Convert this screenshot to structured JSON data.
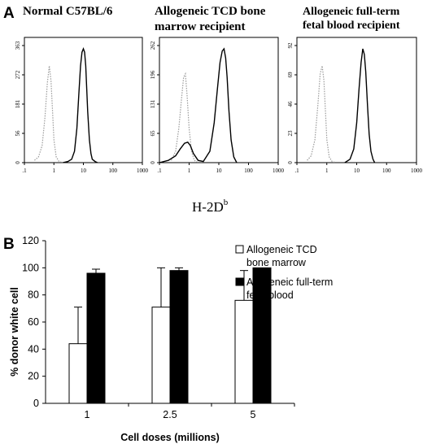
{
  "chart_data": [
    {
      "type": "line",
      "panel_label": "A",
      "title": "Normal C57BL/6",
      "xscale": "log",
      "xticks": [
        ".1",
        "1",
        "10",
        "100",
        "1000"
      ],
      "yticks": [
        "0",
        "56",
        "181",
        "272",
        "363"
      ],
      "series": [
        {
          "style": "gray-dotted",
          "x": [
            0.22,
            0.3,
            0.4,
            0.5,
            0.6,
            0.7,
            0.8,
            0.9,
            1.0,
            1.2,
            1.5,
            2.0
          ],
          "y": [
            0.02,
            0.05,
            0.15,
            0.4,
            0.7,
            0.85,
            0.72,
            0.45,
            0.2,
            0.05,
            0.01,
            0
          ]
        },
        {
          "style": "black-solid",
          "x": [
            2,
            3,
            4,
            5,
            6,
            7,
            8,
            9,
            10,
            11,
            12,
            13,
            14,
            16,
            18,
            20,
            25,
            30
          ],
          "y": [
            0,
            0.01,
            0.03,
            0.1,
            0.3,
            0.6,
            0.85,
            0.97,
            1.0,
            0.97,
            0.85,
            0.65,
            0.45,
            0.2,
            0.08,
            0.03,
            0.01,
            0
          ]
        }
      ]
    },
    {
      "type": "line",
      "title_lines": [
        "Allogeneic TCD bone",
        "marrow recipient"
      ],
      "xscale": "log",
      "xticks": [
        ".1",
        "1",
        "10",
        "100",
        "1000"
      ],
      "yticks": [
        "0",
        "65",
        "131",
        "196",
        "262"
      ],
      "series": [
        {
          "style": "gray-dotted",
          "x": [
            0.25,
            0.35,
            0.45,
            0.55,
            0.65,
            0.75,
            0.85,
            1.0,
            1.2,
            1.5,
            2.0
          ],
          "y": [
            0.02,
            0.1,
            0.3,
            0.55,
            0.75,
            0.78,
            0.6,
            0.3,
            0.1,
            0.02,
            0
          ]
        },
        {
          "style": "black-solid",
          "x": [
            0.1,
            0.2,
            0.35,
            0.5,
            0.7,
            0.9,
            1.1,
            1.4,
            2,
            3,
            5,
            7,
            9,
            11,
            13,
            15,
            17,
            19,
            22,
            26,
            32,
            40
          ],
          "y": [
            0,
            0.02,
            0.06,
            0.12,
            0.17,
            0.18,
            0.15,
            0.08,
            0.02,
            0.01,
            0.1,
            0.35,
            0.65,
            0.88,
            0.98,
            1.0,
            0.92,
            0.75,
            0.45,
            0.2,
            0.05,
            0
          ]
        }
      ]
    },
    {
      "type": "line",
      "title_lines": [
        "Allogeneic full-term",
        "fetal blood recipient"
      ],
      "xscale": "log",
      "xticks": [
        ".1",
        "1",
        "10",
        "100",
        "1000"
      ],
      "yticks": [
        "0",
        "23",
        "46",
        "69",
        "92"
      ],
      "series": [
        {
          "style": "gray-dotted",
          "x": [
            0.22,
            0.3,
            0.4,
            0.5,
            0.6,
            0.7,
            0.8,
            0.9,
            1.0,
            1.2,
            1.5,
            2.0
          ],
          "y": [
            0.02,
            0.06,
            0.2,
            0.5,
            0.78,
            0.85,
            0.72,
            0.45,
            0.2,
            0.05,
            0.01,
            0
          ]
        },
        {
          "style": "black-solid",
          "x": [
            4,
            6,
            8,
            10,
            12,
            14,
            16,
            18,
            20,
            23,
            26,
            30,
            35,
            40
          ],
          "y": [
            0,
            0.03,
            0.12,
            0.35,
            0.65,
            0.88,
            1.0,
            0.95,
            0.8,
            0.5,
            0.25,
            0.1,
            0.03,
            0
          ]
        }
      ]
    },
    {
      "type": "bar",
      "panel_label": "B",
      "categories": [
        "1",
        "2.5",
        "5"
      ],
      "series": [
        {
          "name": "Allogeneic TCD bone marrow",
          "legend_lines": [
            "Allogeneic TCD",
            "bone marrow"
          ],
          "fill": "#ffffff",
          "values": [
            44,
            71,
            76
          ],
          "errors": [
            27,
            29,
            22
          ]
        },
        {
          "name": "Allogeneic full-term fetal blood",
          "legend_lines": [
            "Allogeneic full-term",
            "fetal blood"
          ],
          "fill": "#000000",
          "values": [
            96,
            98,
            100
          ],
          "errors": [
            3,
            2,
            0
          ]
        }
      ],
      "ylim": [
        0,
        120
      ],
      "yticks": [
        "0",
        "20",
        "40",
        "60",
        "80",
        "100",
        "120"
      ],
      "xlabel": "Cell doses (millions)",
      "ylabel": "% donor white cell"
    }
  ],
  "shared_xlabel": {
    "main": "H-2D",
    "sup": "b"
  }
}
